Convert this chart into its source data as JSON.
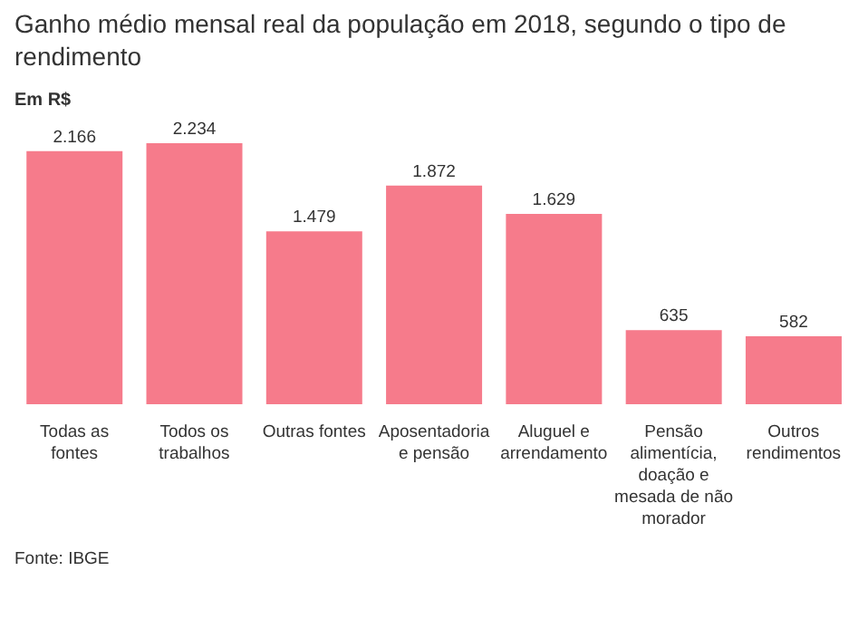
{
  "chart_data": {
    "type": "bar",
    "title": "Ganho médio mensal real da população em 2018, segundo o tipo de rendimento",
    "ylabel": "Em R$",
    "categories": [
      "Todas as fontes",
      "Todos os trabalhos",
      "Outras fontes",
      "Aposentadoria e pensão",
      "Aluguel e arrendamento",
      "Pensão alimentícia, doação e mesada de não morador",
      "Outros rendimentos"
    ],
    "values": [
      2166,
      2234,
      1479,
      1872,
      1629,
      635,
      582
    ],
    "value_labels": [
      "2.166",
      "2.234",
      "1.479",
      "1.872",
      "1.629",
      "635",
      "582"
    ],
    "color": "#f67b8b",
    "annotations": [
      "Fonte: IBGE"
    ]
  }
}
